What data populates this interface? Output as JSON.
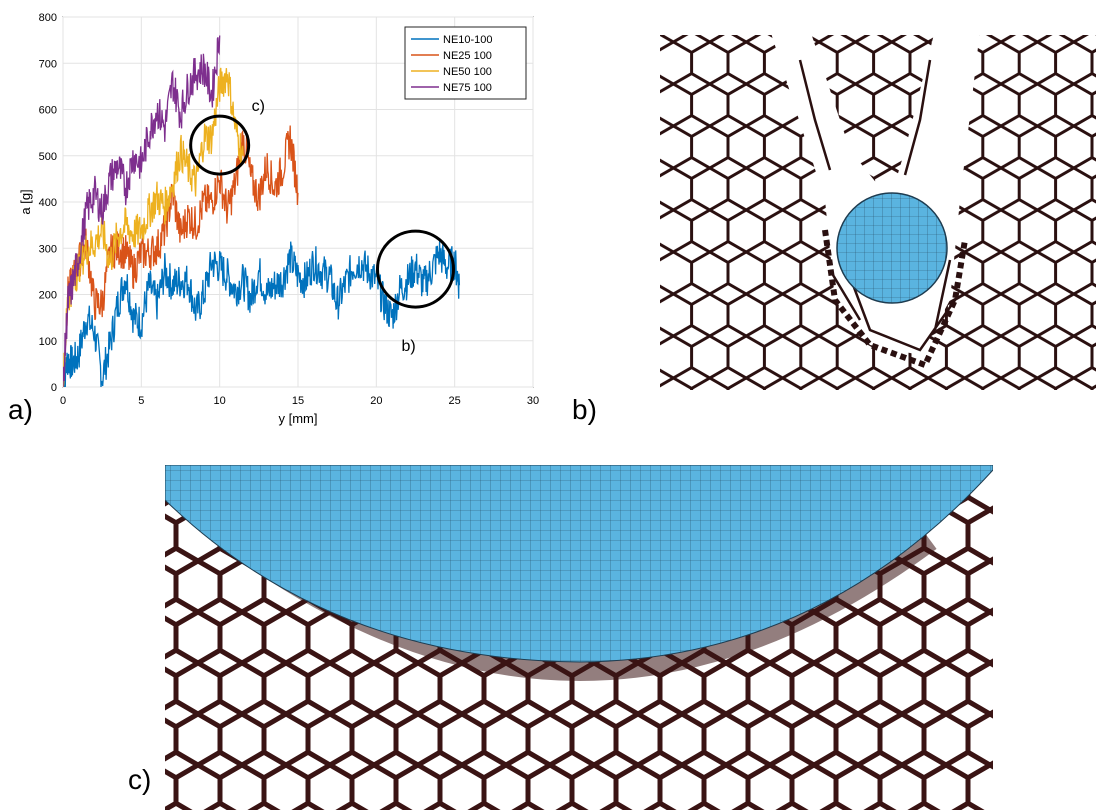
{
  "panel_labels": {
    "a": "a)",
    "b": "b)",
    "c": "c)"
  },
  "colors": {
    "ne10": "#0072BD",
    "ne25": "#D95319",
    "ne50": "#EDB120",
    "ne75": "#7E2F8E",
    "honeycomb": "#2a1010",
    "ball": "#5ab4e0",
    "mesh": "#1e3c50"
  },
  "chart_data": {
    "type": "line",
    "title": "",
    "xlabel": "y [mm]",
    "ylabel": "a [g]",
    "xlim": [
      0,
      30
    ],
    "ylim": [
      0,
      800
    ],
    "xticks": [
      0,
      5,
      10,
      15,
      20,
      25,
      30
    ],
    "yticks": [
      0,
      100,
      200,
      300,
      400,
      500,
      600,
      700,
      800
    ],
    "grid": true,
    "legend_position": "top-right",
    "series": [
      {
        "name": "NE10-100",
        "x": [
          0,
          0.3,
          0.6,
          1,
          1.5,
          2,
          2.5,
          3,
          3.5,
          4,
          4.5,
          5,
          5.5,
          6,
          6.5,
          7,
          7.5,
          8,
          8.5,
          9,
          9.5,
          10,
          10.5,
          11,
          11.5,
          12,
          12.5,
          13,
          13.5,
          14,
          14.5,
          15,
          15.5,
          16,
          16.5,
          17,
          17.5,
          18,
          18.5,
          19,
          19.5,
          20,
          20.5,
          21,
          21.5,
          22,
          22.5,
          23,
          23.5,
          24,
          24.5,
          25,
          25.3
        ],
        "y": [
          0,
          60,
          50,
          70,
          150,
          120,
          20,
          90,
          180,
          240,
          150,
          140,
          220,
          180,
          250,
          220,
          230,
          230,
          160,
          200,
          270,
          260,
          240,
          210,
          230,
          190,
          250,
          200,
          220,
          230,
          280,
          240,
          230,
          270,
          250,
          240,
          180,
          220,
          260,
          270,
          250,
          230,
          180,
          150,
          210,
          230,
          260,
          220,
          250,
          290,
          260,
          270,
          220
        ]
      },
      {
        "name": "NE25 100",
        "x": [
          0,
          0.3,
          0.6,
          1,
          1.5,
          2,
          2.5,
          3,
          3.5,
          4,
          4.5,
          5,
          5.5,
          6,
          6.5,
          7,
          7.5,
          8,
          8.5,
          9,
          9.5,
          10,
          10.5,
          11,
          11.5,
          12,
          12.5,
          13,
          13.5,
          14,
          14.5,
          15
        ],
        "y": [
          0,
          200,
          230,
          270,
          310,
          180,
          180,
          290,
          300,
          290,
          250,
          290,
          290,
          300,
          340,
          420,
          330,
          370,
          350,
          400,
          400,
          450,
          380,
          440,
          540,
          450,
          410,
          480,
          430,
          470,
          540,
          420
        ]
      },
      {
        "name": "NE50 100",
        "x": [
          0,
          0.3,
          0.6,
          1,
          1.5,
          2,
          2.5,
          3,
          3.5,
          4,
          4.5,
          5,
          5.5,
          6,
          6.5,
          7,
          7.5,
          8,
          8.5,
          9,
          9.5,
          10,
          10.5,
          11,
          11.5
        ],
        "y": [
          0,
          190,
          220,
          260,
          300,
          310,
          340,
          270,
          330,
          350,
          330,
          340,
          380,
          410,
          390,
          440,
          510,
          470,
          440,
          540,
          540,
          650,
          680,
          560,
          500
        ]
      },
      {
        "name": "NE75 100",
        "x": [
          0,
          0.3,
          0.6,
          1,
          1.5,
          2,
          2.5,
          3,
          3.5,
          4,
          4.5,
          5,
          5.5,
          6,
          6.5,
          7,
          7.5,
          8,
          8.5,
          9,
          9.5,
          10
        ],
        "y": [
          0,
          180,
          220,
          280,
          380,
          420,
          380,
          450,
          480,
          430,
          500,
          480,
          550,
          600,
          560,
          660,
          590,
          650,
          680,
          690,
          630,
          760
        ]
      }
    ],
    "annotations": [
      {
        "text": "c)",
        "x": 10,
        "y": 530
      },
      {
        "text": "b)",
        "x": 22.5,
        "y": 255
      }
    ]
  }
}
